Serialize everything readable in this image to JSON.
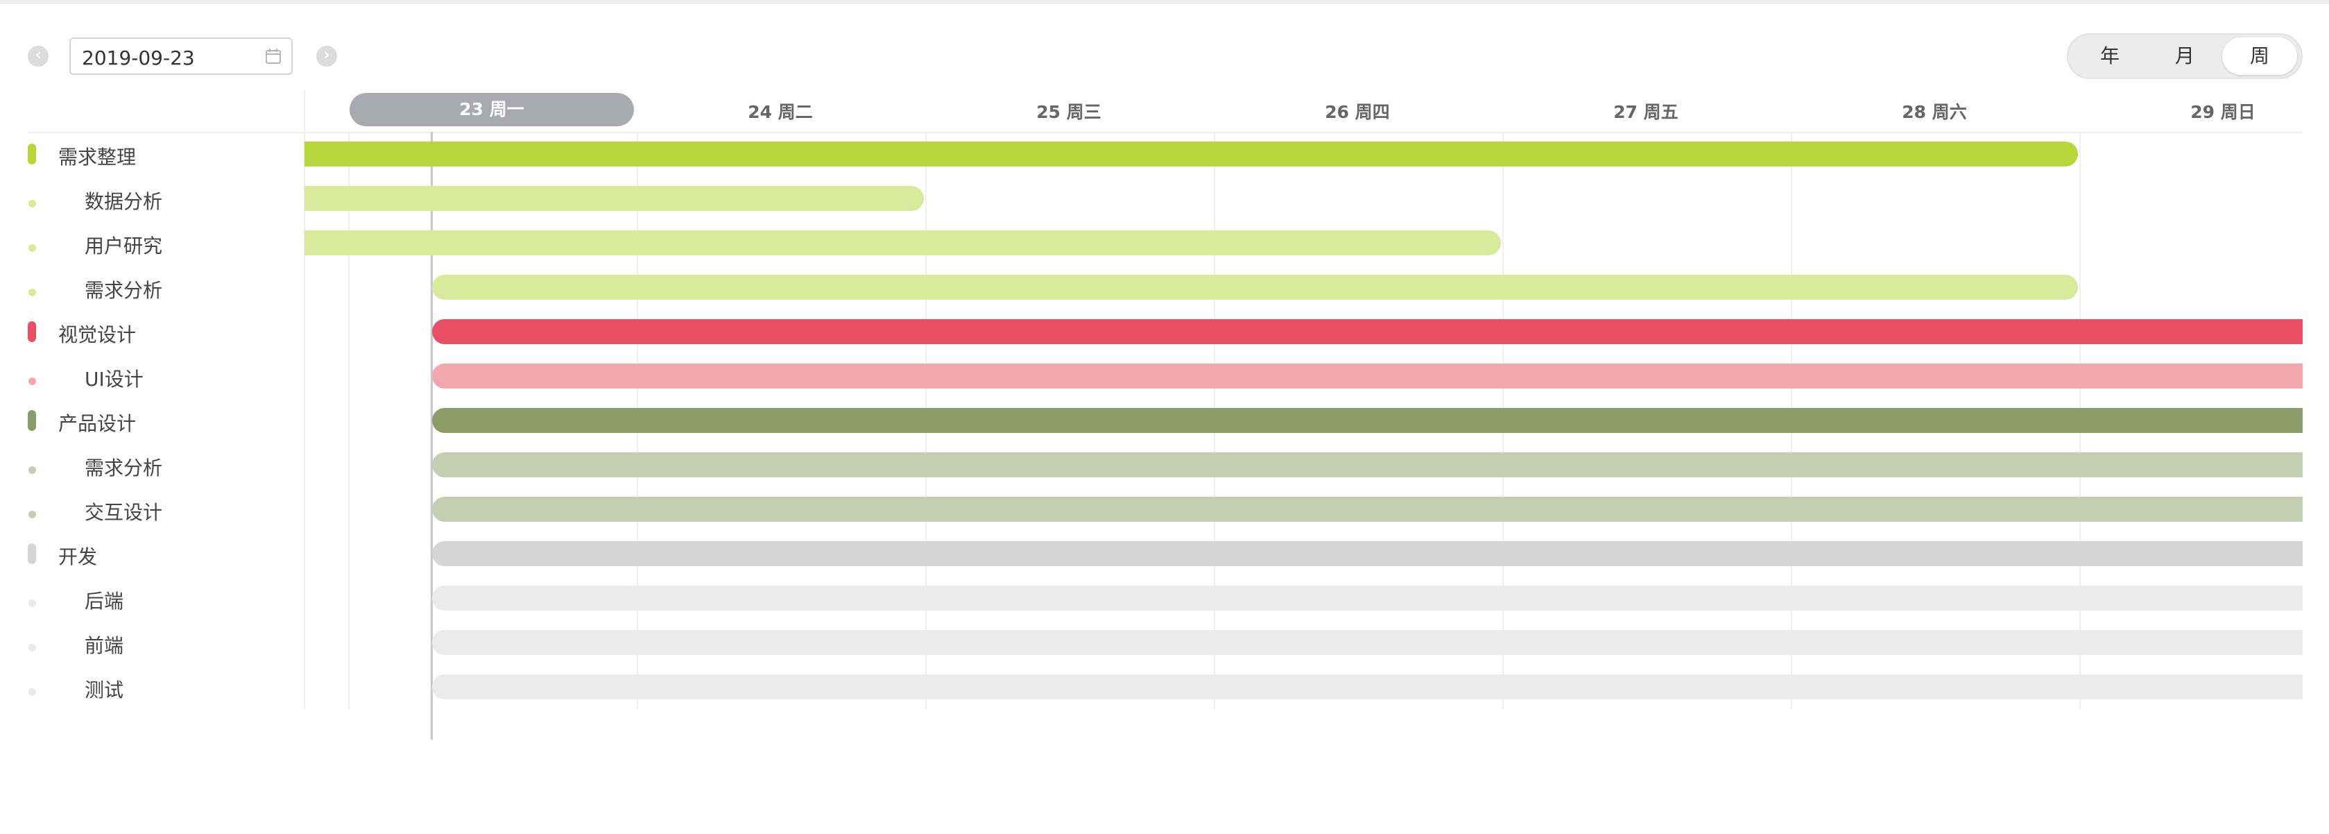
{
  "toolbar": {
    "date_value": "2019-09-23",
    "prev_icon": "chevron-left-icon",
    "next_icon": "chevron-right-icon",
    "calendar_icon": "calendar-icon",
    "view_options": [
      "年",
      "月",
      "周"
    ],
    "active_view": "周"
  },
  "header": {
    "days": [
      "23 周一",
      "24 周二",
      "25 周三",
      "26 周四",
      "27 周五",
      "28 周六",
      "29 周日"
    ],
    "today": "23 周一"
  },
  "tasks": [
    {
      "label": "需求整理",
      "level": 0,
      "color": "#b8d63c"
    },
    {
      "label": "数据分析",
      "level": 1,
      "color": "#dbe99c"
    },
    {
      "label": "用户研究",
      "level": 1,
      "color": "#dbe99c"
    },
    {
      "label": "需求分析",
      "level": 1,
      "color": "#dbe99c"
    },
    {
      "label": "视觉设计",
      "level": 0,
      "color": "#e84e64"
    },
    {
      "label": "UI设计",
      "level": 1,
      "color": "#f3a6ae"
    },
    {
      "label": "产品设计",
      "level": 0,
      "color": "#8c9c6a"
    },
    {
      "label": "需求分析",
      "level": 1,
      "color": "#c6ceb2"
    },
    {
      "label": "交互设计",
      "level": 1,
      "color": "#c6ceb2"
    },
    {
      "label": "开发",
      "level": 0,
      "color": "#d6d6d6"
    },
    {
      "label": "后端",
      "level": 1,
      "color": "#ebebeb"
    },
    {
      "label": "前端",
      "level": 1,
      "color": "#ebebeb"
    },
    {
      "label": "测试",
      "level": 1,
      "color": "#ebebeb"
    }
  ]
}
